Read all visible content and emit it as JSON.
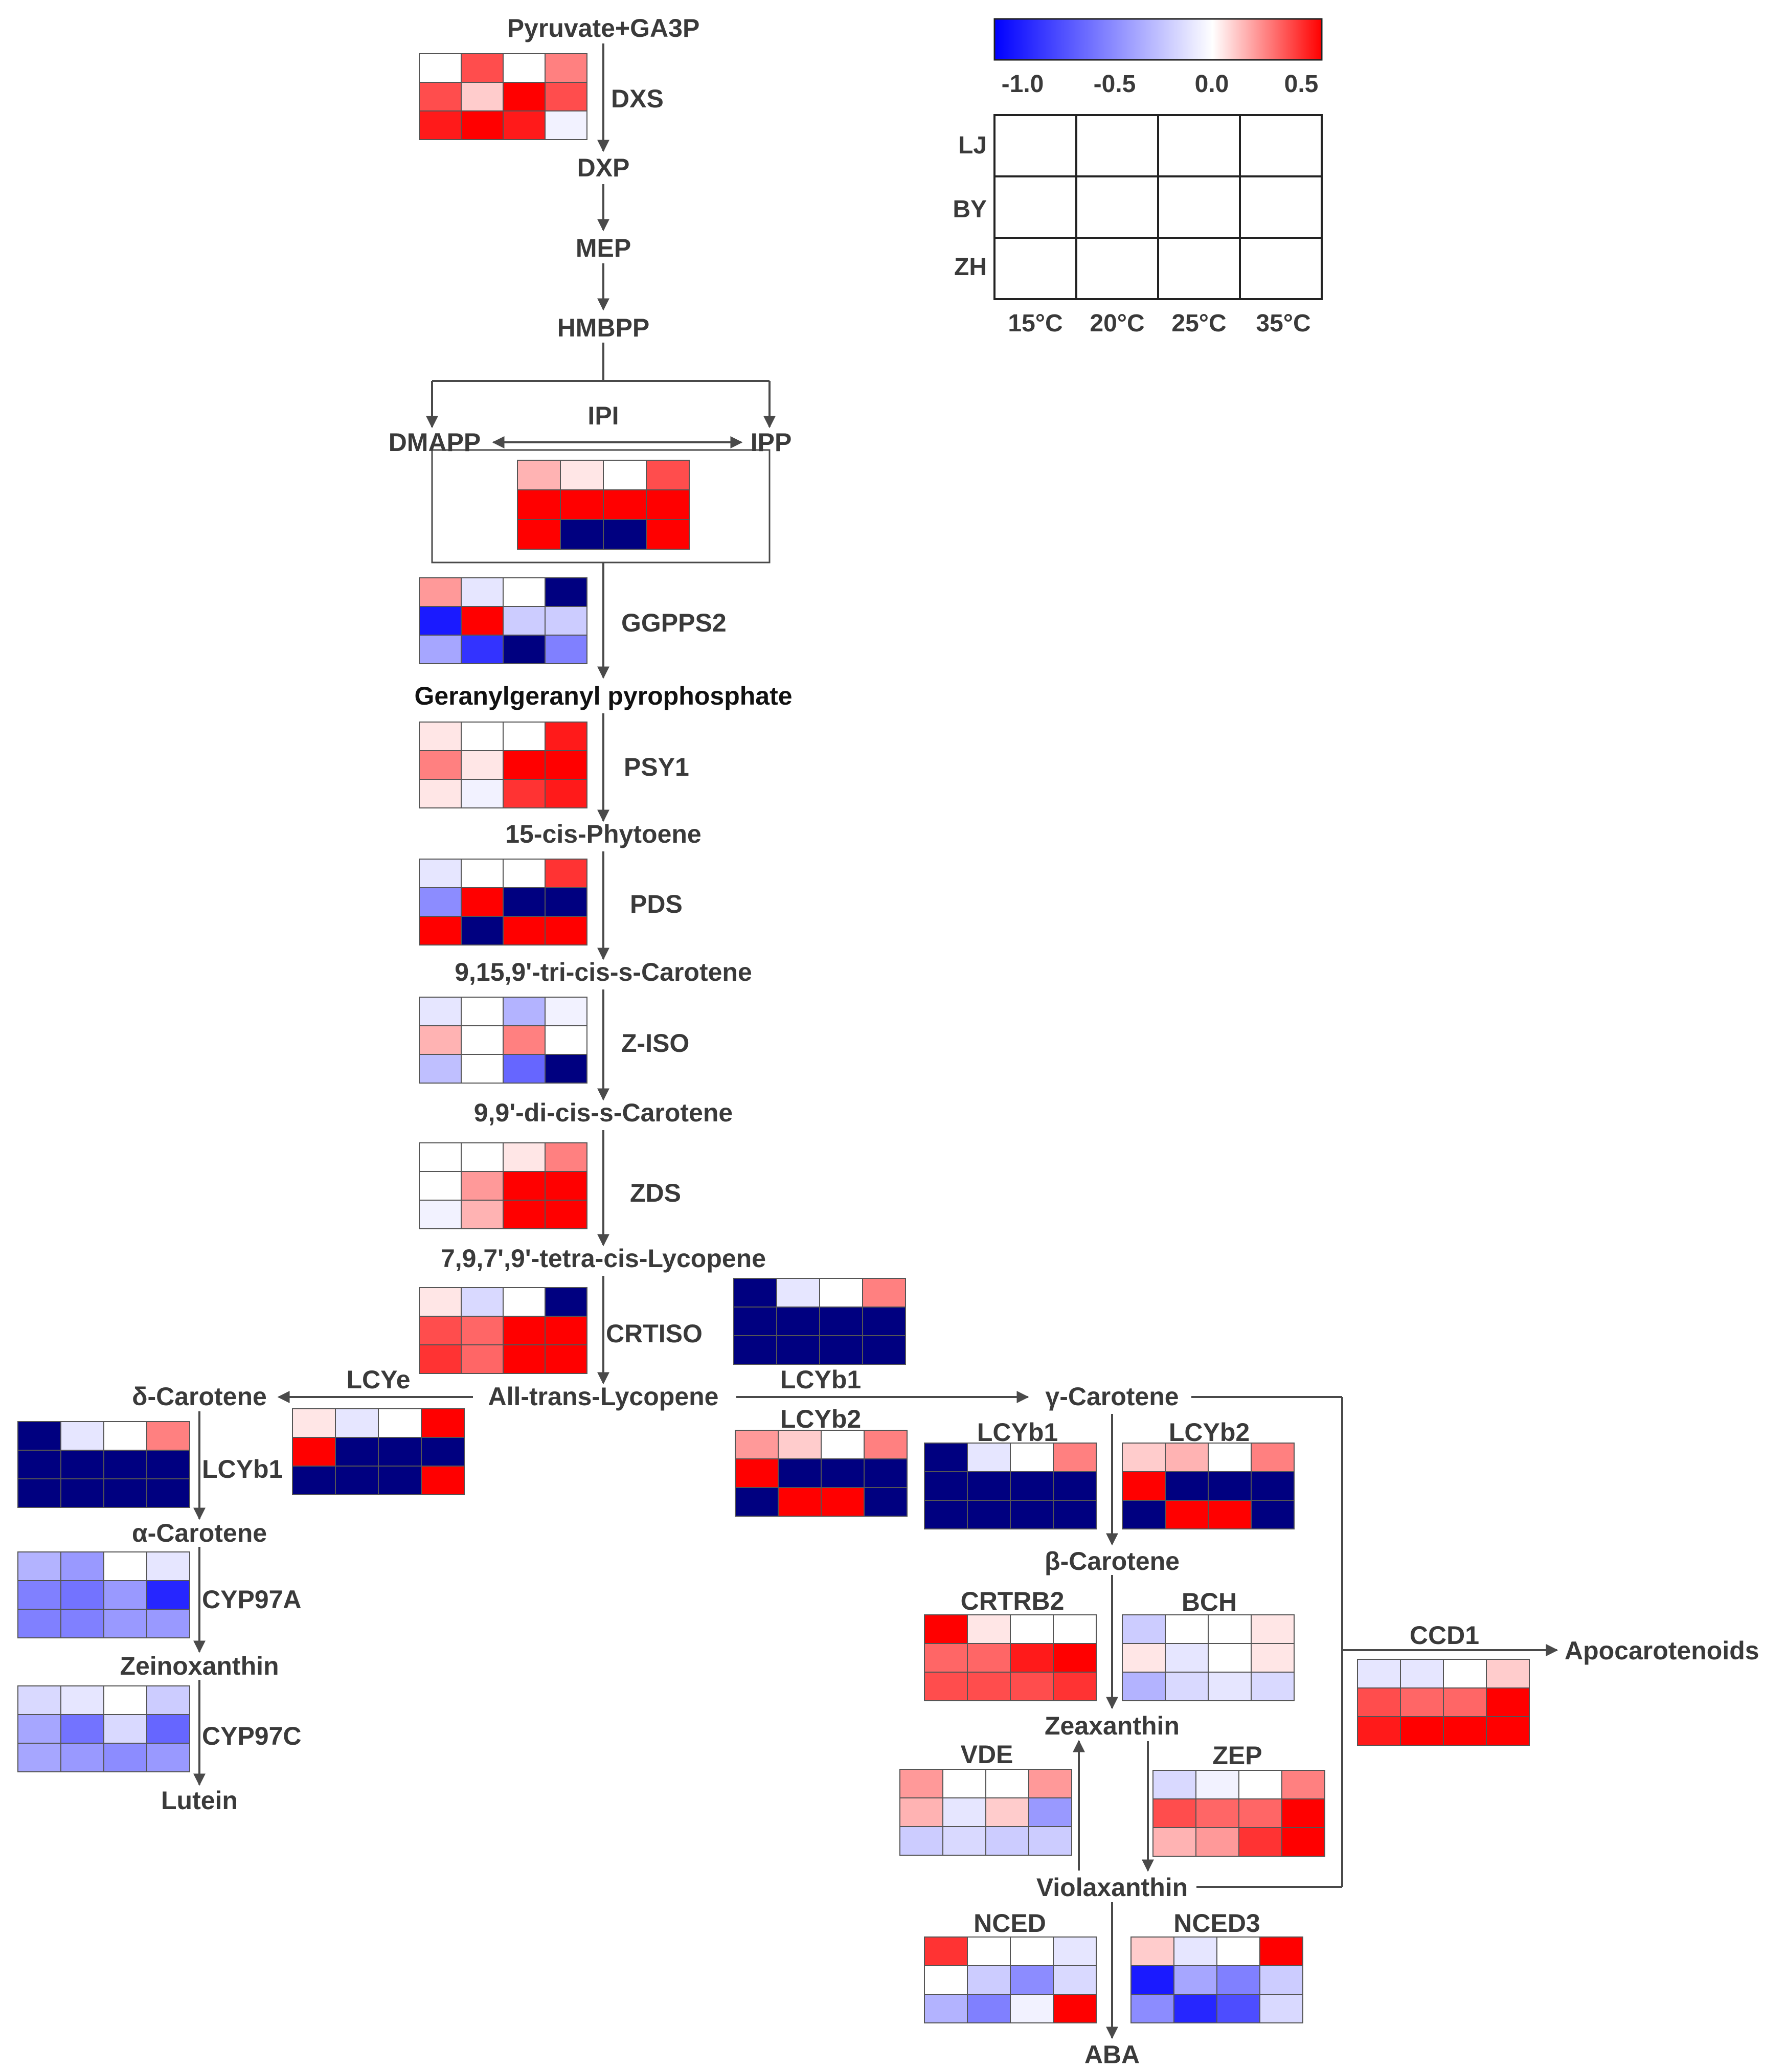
{
  "colors": {
    "min": "#0000ff",
    "mid": "#ffffff",
    "max": "#ff0000",
    "saturated_low": "#000080"
  },
  "legend": {
    "colorbar_ticks": [
      "-1.0",
      "-0.5",
      "0.0",
      "0.5"
    ],
    "rows": [
      "LJ",
      "BY",
      "ZH"
    ],
    "cols": [
      "15°C",
      "20°C",
      "25°C",
      "35°C"
    ]
  },
  "nodes": {
    "pyruvate": "Pyruvate+GA3P",
    "dxp": "DXP",
    "mep": "MEP",
    "hmbpp": "HMBPP",
    "dmapp": "DMAPP",
    "ipp": "IPP",
    "ggpp": "Geranylgeranyl pyrophosphate",
    "phytoene": "15-cis-Phytoene",
    "tricis": "9,15,9'-tri-cis-s-Carotene",
    "dicis": "9,9'-di-cis-s-Carotene",
    "tetracis": "7,9,7',9'-tetra-cis-Lycopene",
    "lycopene": "All-trans-Lycopene",
    "delta": "δ-Carotene",
    "alpha": "α-Carotene",
    "zeinoxanthin": "Zeinoxanthin",
    "lutein": "Lutein",
    "gamma": "γ-Carotene",
    "beta": "β-Carotene",
    "zeaxanthin": "Zeaxanthin",
    "violaxanthin": "Violaxanthin",
    "aba": "ABA",
    "apocarotenoids": "Apocarotenoids"
  },
  "enzymes": {
    "dxs": "DXS",
    "ipi": "IPI",
    "ggpps2": "GGPPS2",
    "psy1": "PSY1",
    "pds": "PDS",
    "ziso": "Z-ISO",
    "zds": "ZDS",
    "crtiso": "CRTISO",
    "lcye": "LCYe",
    "lcyb1_lyc": "LCYb1",
    "lcyb2_lyc": "LCYb2",
    "lcyb1_delta": "LCYb1",
    "cyp97a": "CYP97A",
    "cyp97c": "CYP97C",
    "lcyb1_gamma": "LCYb1",
    "lcyb2_gamma": "LCYb2",
    "crtrb2": "CRTRB2",
    "bch": "BCH",
    "ccd1": "CCD1",
    "vde": "VDE",
    "zep": "ZEP",
    "nced": "NCED",
    "nced3": "NCED3"
  },
  "heatmaps": {
    "dxs": [
      [
        0.0,
        0.35,
        0.0,
        0.25
      ],
      [
        0.35,
        0.1,
        0.8,
        0.35
      ],
      [
        0.45,
        0.5,
        0.45,
        -0.05
      ]
    ],
    "ipi": [
      [
        0.15,
        0.05,
        0.0,
        0.35
      ],
      [
        0.85,
        0.6,
        0.85,
        0.75
      ],
      [
        0.85,
        -1.4,
        -1.4,
        0.95
      ]
    ],
    "ggpps2": [
      [
        0.2,
        -0.1,
        0.0,
        -1.4
      ],
      [
        -0.9,
        0.5,
        -0.2,
        -0.2
      ],
      [
        -0.35,
        -0.8,
        -1.4,
        -0.5
      ]
    ],
    "psy1": [
      [
        0.05,
        0.0,
        0.0,
        0.45
      ],
      [
        0.25,
        0.05,
        0.6,
        0.9
      ],
      [
        0.05,
        -0.05,
        0.4,
        0.45
      ]
    ],
    "pds": [
      [
        -0.1,
        0.0,
        0.0,
        0.4
      ],
      [
        -0.45,
        0.7,
        -1.4,
        -1.4
      ],
      [
        0.95,
        -1.4,
        0.95,
        0.9
      ]
    ],
    "ziso": [
      [
        -0.1,
        0.0,
        -0.3,
        -0.05
      ],
      [
        0.15,
        0.0,
        0.25,
        0.0
      ],
      [
        -0.25,
        0.0,
        -0.6,
        -1.4
      ]
    ],
    "zds": [
      [
        0.0,
        0.0,
        0.05,
        0.25
      ],
      [
        0.0,
        0.2,
        0.8,
        0.75
      ],
      [
        -0.05,
        0.15,
        0.65,
        0.7
      ]
    ],
    "crtiso": [
      [
        0.05,
        -0.15,
        0.0,
        -1.4
      ],
      [
        0.35,
        0.3,
        0.6,
        0.85
      ],
      [
        0.4,
        0.3,
        0.55,
        0.7
      ]
    ],
    "lcyb1_lyc": [
      [
        -1.4,
        -0.1,
        0.0,
        0.25
      ],
      [
        -1.4,
        -1.4,
        -1.4,
        -1.4
      ],
      [
        -1.4,
        -1.4,
        -1.4,
        -1.4
      ]
    ],
    "lcyb2_lyc": [
      [
        0.2,
        0.1,
        0.0,
        0.25
      ],
      [
        0.95,
        -1.4,
        -1.4,
        -1.4
      ],
      [
        -1.4,
        0.85,
        0.75,
        -1.4
      ]
    ],
    "lcye": [
      [
        0.05,
        -0.1,
        0.0,
        0.6
      ],
      [
        0.9,
        -1.4,
        -1.4,
        -1.4
      ],
      [
        -1.4,
        -1.4,
        -1.4,
        0.85
      ]
    ],
    "lcyb1_delta": [
      [
        -1.4,
        -0.1,
        0.0,
        0.25
      ],
      [
        -1.4,
        -1.4,
        -1.4,
        -1.4
      ],
      [
        -1.4,
        -1.4,
        -1.4,
        -1.4
      ]
    ],
    "cyp97a": [
      [
        -0.3,
        -0.4,
        0.0,
        -0.1
      ],
      [
        -0.5,
        -0.55,
        -0.4,
        -0.85
      ],
      [
        -0.5,
        -0.5,
        -0.4,
        -0.4
      ]
    ],
    "cyp97c": [
      [
        -0.15,
        -0.1,
        0.0,
        -0.2
      ],
      [
        -0.35,
        -0.55,
        -0.15,
        -0.6
      ],
      [
        -0.35,
        -0.4,
        -0.45,
        -0.4
      ]
    ],
    "lcyb1_gamma": [
      [
        -1.4,
        -0.1,
        0.0,
        0.25
      ],
      [
        -1.4,
        -1.4,
        -1.4,
        -1.4
      ],
      [
        -1.4,
        -1.4,
        -1.4,
        -1.4
      ]
    ],
    "lcyb2_gamma": [
      [
        0.1,
        0.15,
        0.0,
        0.25
      ],
      [
        0.95,
        -1.4,
        -1.4,
        -1.4
      ],
      [
        -1.4,
        0.85,
        0.8,
        -1.4
      ]
    ],
    "crtrb2": [
      [
        0.55,
        0.05,
        0.0,
        0.0
      ],
      [
        0.3,
        0.3,
        0.45,
        0.9
      ],
      [
        0.35,
        0.35,
        0.35,
        0.4
      ]
    ],
    "bch": [
      [
        -0.2,
        0.0,
        0.0,
        0.05
      ],
      [
        0.05,
        -0.1,
        0.0,
        0.05
      ],
      [
        -0.3,
        -0.15,
        -0.1,
        -0.15
      ]
    ],
    "ccd1": [
      [
        -0.1,
        -0.1,
        0.0,
        0.1
      ],
      [
        0.35,
        0.3,
        0.3,
        0.6
      ],
      [
        0.45,
        0.55,
        0.6,
        0.9
      ]
    ],
    "vde": [
      [
        0.2,
        0.0,
        0.0,
        0.2
      ],
      [
        0.15,
        -0.1,
        0.1,
        -0.4
      ],
      [
        -0.2,
        -0.15,
        -0.2,
        -0.2
      ]
    ],
    "zep": [
      [
        -0.15,
        -0.05,
        0.0,
        0.25
      ],
      [
        0.35,
        0.3,
        0.3,
        0.8
      ],
      [
        0.15,
        0.2,
        0.4,
        0.9
      ]
    ],
    "nced": [
      [
        0.4,
        0.0,
        0.0,
        -0.1
      ],
      [
        0.0,
        -0.2,
        -0.45,
        -0.15
      ],
      [
        -0.3,
        -0.5,
        -0.05,
        0.7
      ]
    ],
    "nced3": [
      [
        0.1,
        -0.1,
        0.0,
        0.55
      ],
      [
        -0.9,
        -0.35,
        -0.5,
        -0.2
      ],
      [
        -0.45,
        -0.85,
        -0.7,
        -0.15
      ]
    ]
  }
}
